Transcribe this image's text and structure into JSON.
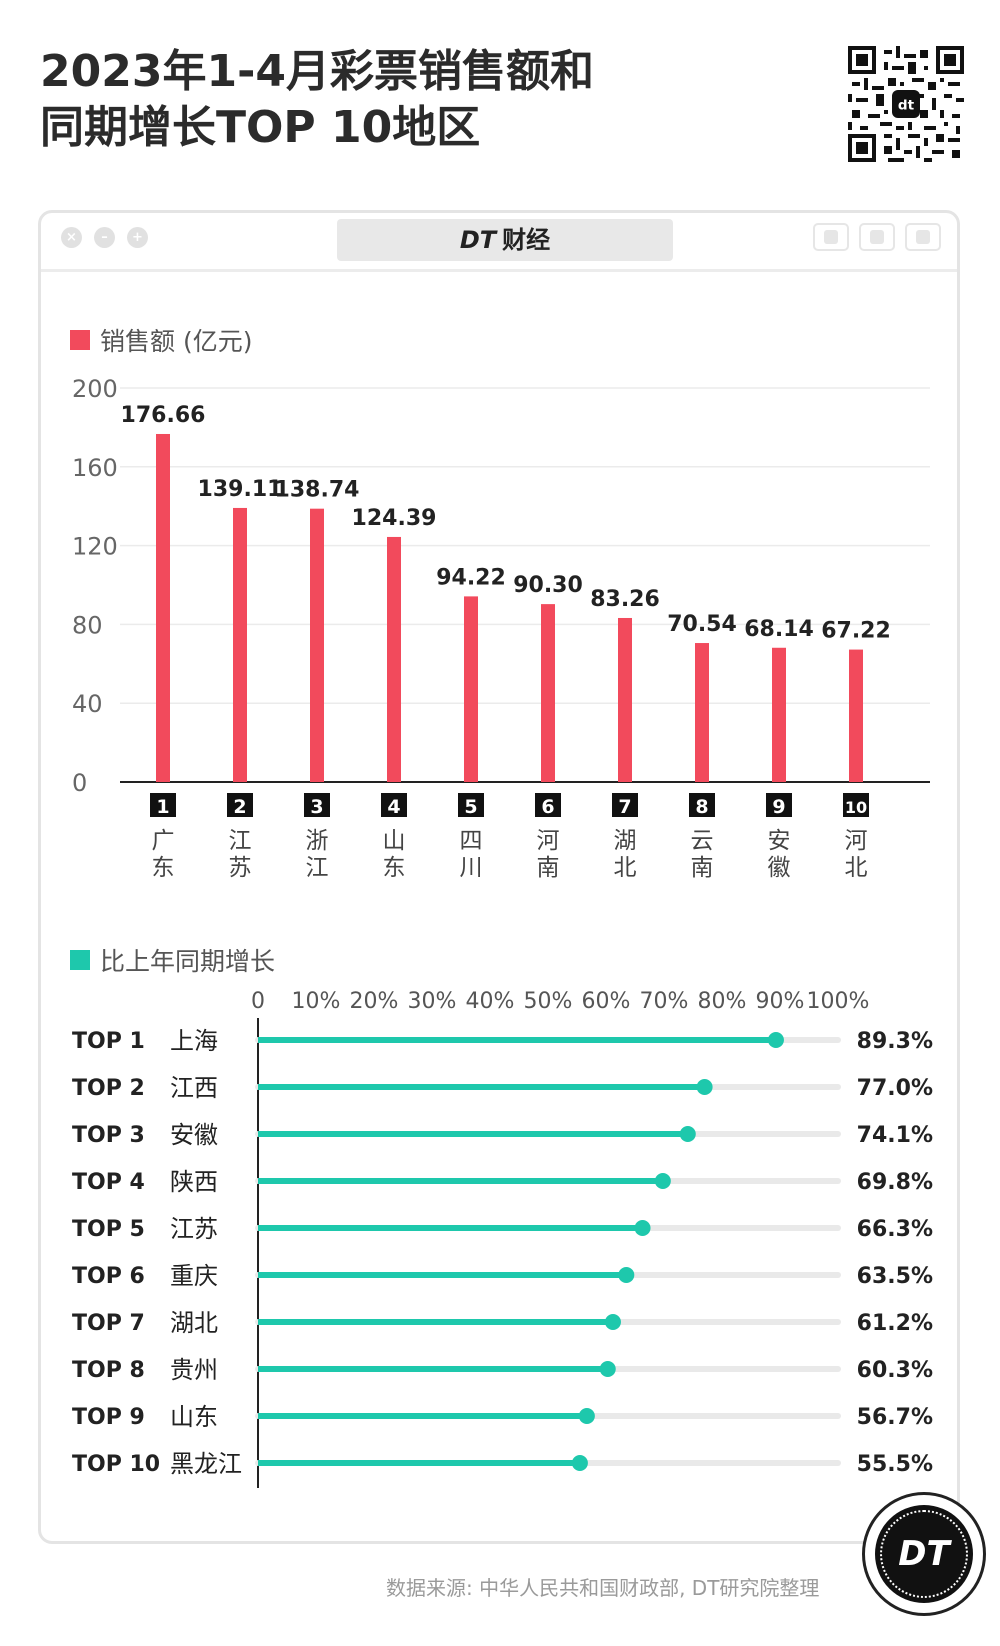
{
  "header": {
    "title_line1": "2023年1-4月彩票销售额和",
    "title_line2": "同期增长TOP 10地区"
  },
  "window": {
    "brand_mark": "DT",
    "brand_name": "财经"
  },
  "colors": {
    "bar": "#f24a5c",
    "growth": "#1ec8ac",
    "track": "#e9e9e9",
    "rank_badge": "#111111"
  },
  "icons": [
    "qr-code-icon",
    "close-icon",
    "minimize-icon",
    "maximize-icon",
    "window-icon"
  ],
  "chart_data": [
    {
      "type": "bar",
      "legend": "销售额 (亿元)",
      "ylim": [
        0,
        200
      ],
      "yticks": [
        0,
        40,
        80,
        120,
        160,
        200
      ],
      "grid": true,
      "ranks": [
        "1",
        "2",
        "3",
        "4",
        "5",
        "6",
        "7",
        "8",
        "9",
        "10"
      ],
      "categories": [
        "广东",
        "江苏",
        "浙江",
        "山东",
        "四川",
        "河南",
        "湖北",
        "云南",
        "安徽",
        "河北"
      ],
      "values": [
        176.66,
        139.11,
        138.74,
        124.39,
        94.22,
        90.3,
        83.26,
        70.54,
        68.14,
        67.22
      ],
      "value_labels": [
        "176.66",
        "139.11",
        "138.74",
        "124.39",
        "94.22",
        "90.30",
        "83.26",
        "70.54",
        "68.14",
        "67.22"
      ]
    },
    {
      "type": "bar",
      "orientation": "horizontal",
      "legend": "比上年同期增长",
      "xlim": [
        0,
        100
      ],
      "xticks": [
        "0",
        "10%",
        "20%",
        "30%",
        "40%",
        "50%",
        "60%",
        "70%",
        "80%",
        "90%",
        "100%"
      ],
      "ranks": [
        "TOP 1",
        "TOP 2",
        "TOP 3",
        "TOP 4",
        "TOP 5",
        "TOP 6",
        "TOP 7",
        "TOP 8",
        "TOP 9",
        "TOP 10"
      ],
      "categories": [
        "上海",
        "江西",
        "安徽",
        "陕西",
        "江苏",
        "重庆",
        "湖北",
        "贵州",
        "山东",
        "黑龙江"
      ],
      "values": [
        89.3,
        77.0,
        74.1,
        69.8,
        66.3,
        63.5,
        61.2,
        60.3,
        56.7,
        55.5
      ],
      "value_labels": [
        "89.3%",
        "77.0%",
        "74.1%",
        "69.8%",
        "66.3%",
        "63.5%",
        "61.2%",
        "60.3%",
        "56.7%",
        "55.5%"
      ]
    }
  ],
  "footer": {
    "source": "数据来源: 中华人民共和国财政部, DT研究院整理",
    "logo_text": "DT"
  }
}
